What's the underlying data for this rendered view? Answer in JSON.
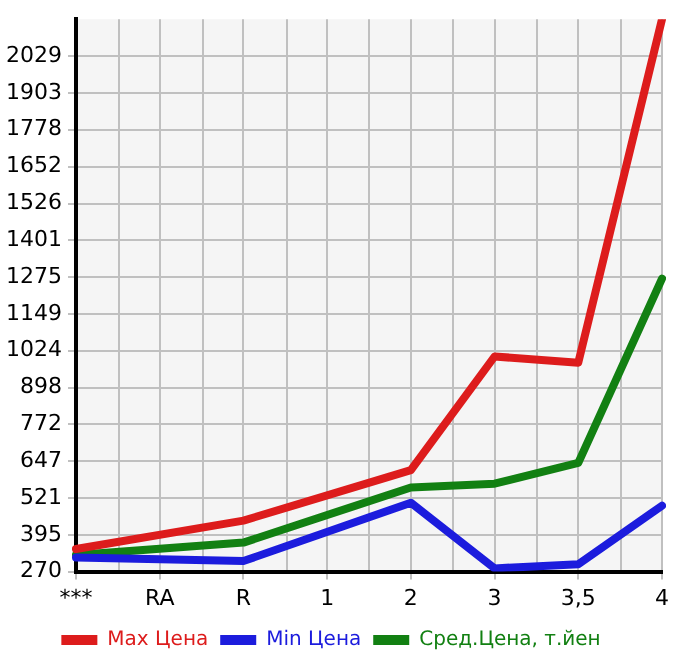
{
  "chart_data": {
    "type": "line",
    "categories": [
      "***",
      "RA",
      "R",
      "1",
      "2",
      "3",
      "3,5",
      "4"
    ],
    "series": [
      {
        "name": "Max Цена",
        "color": "#dd1c1c",
        "values": [
          347,
          null,
          444,
          null,
          616,
          1004,
          983,
          2155
        ]
      },
      {
        "name": "Min Цена",
        "color": "#1c1cdd",
        "values": [
          318,
          null,
          306,
          null,
          505,
          281,
          295,
          495
        ]
      },
      {
        "name": "Сред.Цена, т.йен",
        "color": "#128012",
        "values": [
          327,
          null,
          369,
          null,
          557,
          570,
          641,
          1270
        ]
      }
    ],
    "ylim": [
      270,
      2155
    ],
    "yticks": [
      270,
      395,
      521,
      647,
      772,
      898,
      1024,
      1149,
      1275,
      1401,
      1526,
      1652,
      1778,
      1903,
      2029
    ],
    "grid": true,
    "legend": "bottom",
    "marker": "none",
    "line_style": "solid"
  }
}
